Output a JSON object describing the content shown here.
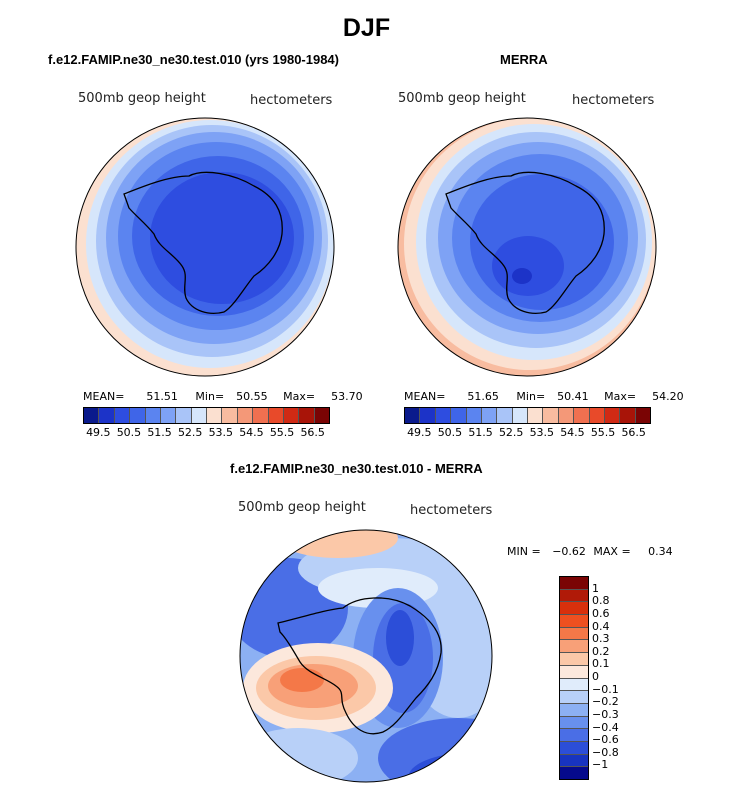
{
  "figure": {
    "title": "DJF"
  },
  "chart_data": [
    {
      "type": "heatmap",
      "title": "f.e12.FAMIP.ne30_ne30.test.010 (yrs 1980-1984)",
      "left_label": "500mb geop height",
      "right_label": "hectometers",
      "projection": "polar-stereographic (south pole)",
      "stats": {
        "mean_label": "MEAN=",
        "mean": "51.51",
        "min_label": "Min=",
        "min": "50.55",
        "max_label": "Max=",
        "max": "53.70"
      },
      "colorbar": {
        "colors": [
          "#0a1a8c",
          "#1c33c8",
          "#2e4de0",
          "#3f65e8",
          "#5b84f0",
          "#7ea2f5",
          "#a9c4f8",
          "#d6e6fb",
          "#fbe0d0",
          "#f8bca0",
          "#f49878",
          "#f07050",
          "#e84a2a",
          "#d02a14",
          "#a81408",
          "#7a0404"
        ],
        "tick_labels": [
          "49.5",
          "50.5",
          "51.5",
          "52.5",
          "53.5",
          "54.5",
          "55.5",
          "56.5"
        ]
      }
    },
    {
      "type": "heatmap",
      "title": "MERRA",
      "left_label": "500mb geop height",
      "right_label": "hectometers",
      "projection": "polar-stereographic (south pole)",
      "stats": {
        "mean_label": "MEAN=",
        "mean": "51.65",
        "min_label": "Min=",
        "min": "50.41",
        "max_label": "Max=",
        "max": "54.20"
      },
      "colorbar": {
        "colors": [
          "#0a1a8c",
          "#1c33c8",
          "#2e4de0",
          "#3f65e8",
          "#5b84f0",
          "#7ea2f5",
          "#a9c4f8",
          "#d6e6fb",
          "#fbe0d0",
          "#f8bca0",
          "#f49878",
          "#f07050",
          "#e84a2a",
          "#d02a14",
          "#a81408",
          "#7a0404"
        ],
        "tick_labels": [
          "49.5",
          "50.5",
          "51.5",
          "52.5",
          "53.5",
          "54.5",
          "55.5",
          "56.5"
        ]
      }
    },
    {
      "type": "heatmap",
      "title": "f.e12.FAMIP.ne30_ne30.test.010 - MERRA",
      "left_label": "500mb geop height",
      "right_label": "hectometers",
      "projection": "polar-stereographic (south pole)",
      "stats": {
        "min_label": "MIN =",
        "min": "−0.62",
        "max_label": "MAX =",
        "max": "0.34"
      },
      "colorbar": {
        "colors": [
          "#7a0404",
          "#b01a08",
          "#d8300c",
          "#ee5020",
          "#f47848",
          "#f8a078",
          "#fbc8a8",
          "#fce8dc",
          "#e0ecfb",
          "#b8d0f8",
          "#8cb0f3",
          "#6890ee",
          "#4a6ee6",
          "#2c4ed8",
          "#1834c0",
          "#050a8c"
        ],
        "tick_labels": [
          "1",
          "0.8",
          "0.6",
          "0.4",
          "0.3",
          "0.2",
          "0.1",
          "0",
          "−0.1",
          "−0.2",
          "−0.3",
          "−0.4",
          "−0.6",
          "−0.8",
          "−1"
        ]
      }
    }
  ]
}
